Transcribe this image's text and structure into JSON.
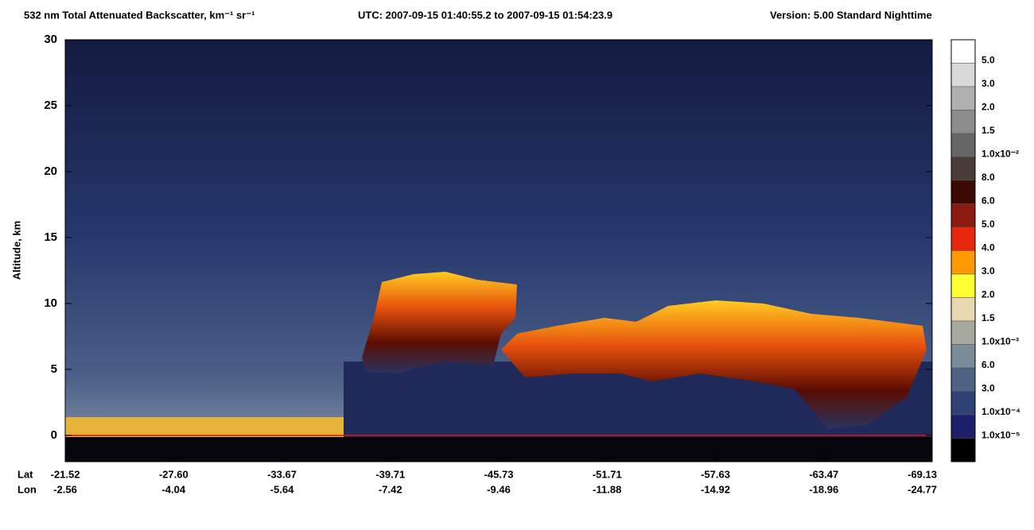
{
  "chart_data": {
    "type": "curtain",
    "title": "532 nm Total Attenuated Backscatter, km⁻¹ sr⁻¹",
    "utc": "UTC:  2007-09-15 01:40:55.2  to  2007-09-15 01:54:23.9",
    "version": "Version: 5.00  Standard  Nighttime",
    "ylabel": "Altitude, km",
    "ylim": [
      -2,
      30
    ],
    "yticks": [
      0,
      5,
      10,
      15,
      20,
      25,
      30
    ],
    "x_row_labels": [
      "Lat",
      "Lon"
    ],
    "lat": [
      "-21.52",
      "-27.60",
      "-33.67",
      "-39.71",
      "-45.73",
      "-51.71",
      "-57.63",
      "-63.47",
      "-69.13"
    ],
    "lon": [
      "-2.56",
      "-4.04",
      "-5.64",
      "-7.42",
      "-9.46",
      "-11.88",
      "-14.92",
      "-18.96",
      "-24.77"
    ],
    "colorbar": {
      "colors": [
        "#ffffff",
        "#d9d9d9",
        "#b0b0b0",
        "#8c8c8c",
        "#666666",
        "#4a3c37",
        "#3a0a00",
        "#8b1a10",
        "#e8260a",
        "#ff9900",
        "#ffff33",
        "#e8d9b0",
        "#a8a89c",
        "#7b8c99",
        "#4d6485",
        "#2e4275",
        "#1e1f6b",
        "#000000"
      ],
      "labels": [
        "5.0",
        "3.0",
        "2.0",
        "1.5",
        "1.0x10⁻²",
        "8.0",
        "6.0",
        "5.0",
        "4.0",
        "3.0",
        "2.0",
        "1.5",
        "1.0x10⁻³",
        "6.0",
        "3.0",
        "1.0x10⁻⁴",
        "1.0x10⁻⁵"
      ]
    }
  }
}
